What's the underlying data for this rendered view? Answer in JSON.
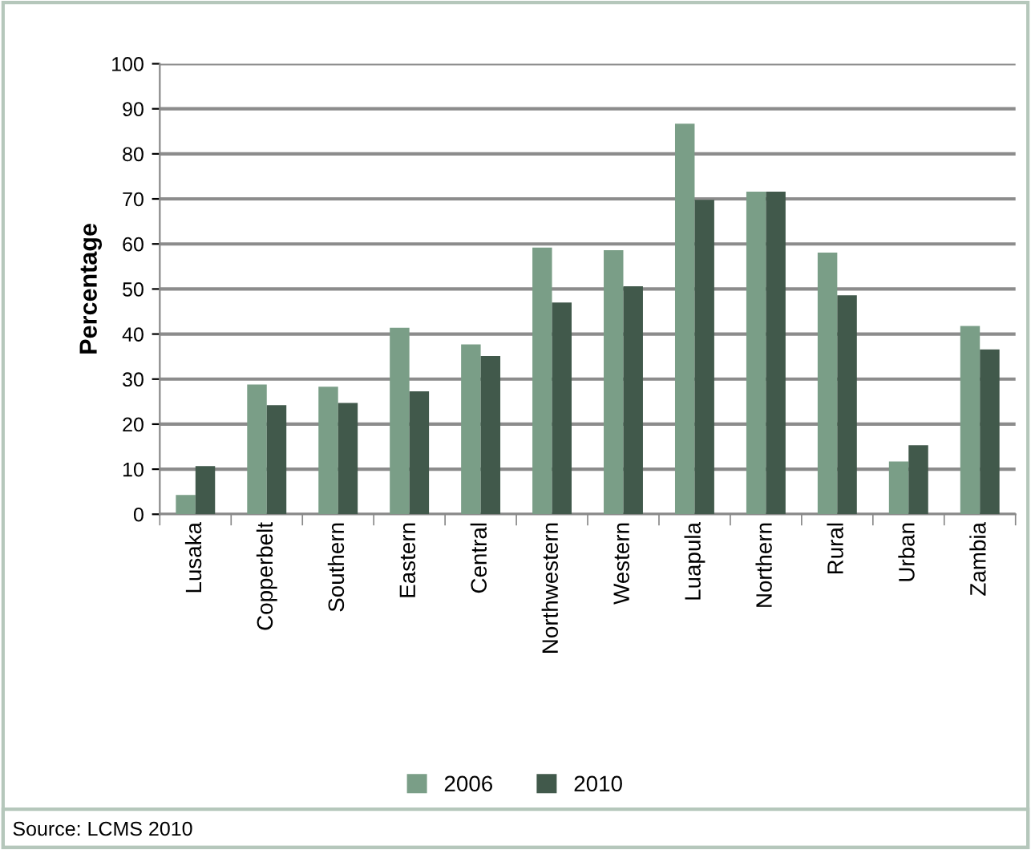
{
  "chart_data": {
    "type": "bar",
    "ylabel": "Percentage",
    "categories": [
      "Lusaka",
      "Copperbelt",
      "Southern",
      "Eastern",
      "Central",
      "Northwestern",
      "Western",
      "Luapula",
      "Northern",
      "Rural",
      "Urban",
      "Zambia"
    ],
    "series": [
      {
        "name": "2006",
        "color": "#7a9e87",
        "values": [
          4.3,
          28.8,
          28.3,
          41.4,
          37.7,
          59.2,
          58.6,
          86.7,
          71.6,
          58.1,
          11.7,
          41.8
        ]
      },
      {
        "name": "2010",
        "color": "#41594b",
        "values": [
          10.7,
          24.2,
          24.7,
          27.3,
          35.1,
          47.0,
          50.6,
          69.8,
          71.6,
          48.6,
          15.3,
          36.6
        ]
      }
    ],
    "ylim": [
      0,
      100
    ],
    "yticks": [
      0,
      10,
      20,
      30,
      40,
      50,
      60,
      70,
      80,
      90,
      100
    ],
    "grid": "y",
    "legend": "bottom",
    "annotations": [
      "Source: LCMS 2010"
    ]
  }
}
